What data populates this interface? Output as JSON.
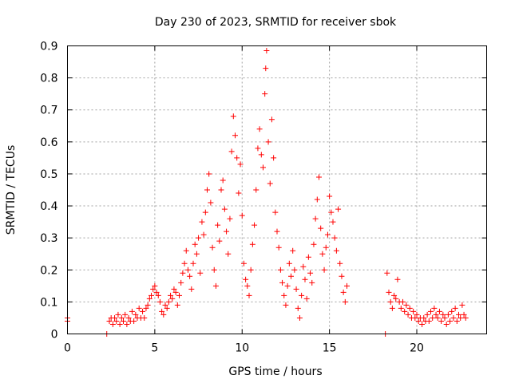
{
  "chart_data": {
    "type": "scatter",
    "title": "Day 230 of 2023, SRMTID for receiver sbok",
    "xlabel": "GPS time / hours",
    "ylabel": "SRMTID / TECUs",
    "xlim": [
      0,
      24
    ],
    "ylim": [
      0,
      0.9
    ],
    "xticks": [
      0,
      5,
      10,
      15,
      20
    ],
    "xtick_labels": [
      "0",
      "5",
      "10",
      "15",
      "20"
    ],
    "yticks": [
      0,
      0.1,
      0.2,
      0.3,
      0.4,
      0.5,
      0.6,
      0.7,
      0.8,
      0.9
    ],
    "ytick_labels": [
      "0",
      "0.1",
      "0.2",
      "0.3",
      "0.4",
      "0.5",
      "0.6",
      "0.7",
      "0.8",
      "0.9"
    ],
    "grid": true,
    "marker": "plus",
    "color": "#ff0000",
    "series": [
      {
        "name": "SRMTID",
        "points": [
          [
            0.0,
            0.05
          ],
          [
            0.0,
            0.04
          ],
          [
            2.25,
            0.0
          ],
          [
            18.2,
            0.0
          ],
          [
            2.4,
            0.04
          ],
          [
            2.5,
            0.05
          ],
          [
            2.6,
            0.03
          ],
          [
            2.7,
            0.05
          ],
          [
            2.8,
            0.04
          ],
          [
            2.9,
            0.06
          ],
          [
            3.0,
            0.03
          ],
          [
            3.1,
            0.05
          ],
          [
            3.2,
            0.04
          ],
          [
            3.3,
            0.06
          ],
          [
            3.4,
            0.03
          ],
          [
            3.5,
            0.05
          ],
          [
            3.6,
            0.04
          ],
          [
            3.7,
            0.07
          ],
          [
            3.8,
            0.04
          ],
          [
            3.9,
            0.06
          ],
          [
            4.0,
            0.05
          ],
          [
            4.1,
            0.08
          ],
          [
            4.2,
            0.05
          ],
          [
            4.3,
            0.07
          ],
          [
            4.4,
            0.05
          ],
          [
            4.5,
            0.08
          ],
          [
            4.6,
            0.09
          ],
          [
            4.7,
            0.11
          ],
          [
            4.8,
            0.12
          ],
          [
            4.9,
            0.14
          ],
          [
            5.0,
            0.15
          ],
          [
            5.1,
            0.13
          ],
          [
            5.2,
            0.12
          ],
          [
            5.3,
            0.1
          ],
          [
            5.4,
            0.07
          ],
          [
            5.5,
            0.06
          ],
          [
            5.6,
            0.09
          ],
          [
            5.7,
            0.08
          ],
          [
            5.8,
            0.1
          ],
          [
            5.9,
            0.12
          ],
          [
            6.0,
            0.11
          ],
          [
            6.1,
            0.14
          ],
          [
            6.2,
            0.13
          ],
          [
            6.3,
            0.09
          ],
          [
            6.4,
            0.12
          ],
          [
            6.5,
            0.16
          ],
          [
            6.6,
            0.19
          ],
          [
            6.7,
            0.22
          ],
          [
            6.8,
            0.26
          ],
          [
            6.9,
            0.2
          ],
          [
            7.0,
            0.18
          ],
          [
            7.1,
            0.14
          ],
          [
            7.2,
            0.22
          ],
          [
            7.3,
            0.28
          ],
          [
            7.4,
            0.25
          ],
          [
            7.5,
            0.3
          ],
          [
            7.6,
            0.19
          ],
          [
            7.7,
            0.35
          ],
          [
            7.8,
            0.31
          ],
          [
            7.9,
            0.38
          ],
          [
            8.0,
            0.45
          ],
          [
            8.1,
            0.5
          ],
          [
            8.2,
            0.41
          ],
          [
            8.3,
            0.27
          ],
          [
            8.4,
            0.2
          ],
          [
            8.5,
            0.15
          ],
          [
            8.6,
            0.34
          ],
          [
            8.7,
            0.29
          ],
          [
            8.8,
            0.45
          ],
          [
            8.9,
            0.48
          ],
          [
            9.0,
            0.39
          ],
          [
            9.1,
            0.32
          ],
          [
            9.2,
            0.25
          ],
          [
            9.3,
            0.36
          ],
          [
            9.4,
            0.57
          ],
          [
            9.5,
            0.68
          ],
          [
            9.6,
            0.62
          ],
          [
            9.7,
            0.55
          ],
          [
            9.8,
            0.44
          ],
          [
            9.9,
            0.53
          ],
          [
            10.0,
            0.37
          ],
          [
            10.1,
            0.22
          ],
          [
            10.2,
            0.17
          ],
          [
            10.3,
            0.15
          ],
          [
            10.4,
            0.12
          ],
          [
            10.5,
            0.2
          ],
          [
            10.6,
            0.28
          ],
          [
            10.7,
            0.34
          ],
          [
            10.8,
            0.45
          ],
          [
            10.9,
            0.58
          ],
          [
            11.0,
            0.64
          ],
          [
            11.1,
            0.56
          ],
          [
            11.2,
            0.52
          ],
          [
            11.3,
            0.75
          ],
          [
            11.35,
            0.83
          ],
          [
            11.4,
            0.885
          ],
          [
            11.5,
            0.6
          ],
          [
            11.6,
            0.47
          ],
          [
            11.7,
            0.67
          ],
          [
            11.8,
            0.55
          ],
          [
            11.9,
            0.38
          ],
          [
            12.0,
            0.32
          ],
          [
            12.1,
            0.27
          ],
          [
            12.2,
            0.2
          ],
          [
            12.3,
            0.16
          ],
          [
            12.4,
            0.12
          ],
          [
            12.5,
            0.09
          ],
          [
            12.6,
            0.15
          ],
          [
            12.7,
            0.22
          ],
          [
            12.8,
            0.18
          ],
          [
            12.9,
            0.26
          ],
          [
            13.0,
            0.2
          ],
          [
            13.1,
            0.14
          ],
          [
            13.2,
            0.08
          ],
          [
            13.3,
            0.05
          ],
          [
            13.4,
            0.12
          ],
          [
            13.5,
            0.21
          ],
          [
            13.6,
            0.17
          ],
          [
            13.7,
            0.11
          ],
          [
            13.8,
            0.24
          ],
          [
            13.9,
            0.19
          ],
          [
            14.0,
            0.16
          ],
          [
            14.1,
            0.28
          ],
          [
            14.2,
            0.36
          ],
          [
            14.3,
            0.42
          ],
          [
            14.4,
            0.49
          ],
          [
            14.5,
            0.33
          ],
          [
            14.6,
            0.25
          ],
          [
            14.7,
            0.2
          ],
          [
            14.8,
            0.27
          ],
          [
            14.9,
            0.31
          ],
          [
            15.0,
            0.43
          ],
          [
            15.1,
            0.38
          ],
          [
            15.2,
            0.35
          ],
          [
            15.3,
            0.3
          ],
          [
            15.4,
            0.26
          ],
          [
            15.5,
            0.39
          ],
          [
            15.6,
            0.22
          ],
          [
            15.7,
            0.18
          ],
          [
            15.8,
            0.13
          ],
          [
            15.9,
            0.1
          ],
          [
            16.0,
            0.15
          ],
          [
            18.3,
            0.19
          ],
          [
            18.4,
            0.13
          ],
          [
            18.5,
            0.1
          ],
          [
            18.6,
            0.08
          ],
          [
            18.7,
            0.12
          ],
          [
            18.8,
            0.11
          ],
          [
            18.9,
            0.17
          ],
          [
            19.0,
            0.1
          ],
          [
            19.1,
            0.08
          ],
          [
            19.2,
            0.1
          ],
          [
            19.3,
            0.07
          ],
          [
            19.4,
            0.09
          ],
          [
            19.5,
            0.06
          ],
          [
            19.6,
            0.08
          ],
          [
            19.7,
            0.05
          ],
          [
            19.8,
            0.07
          ],
          [
            19.9,
            0.05
          ],
          [
            20.0,
            0.06
          ],
          [
            20.1,
            0.04
          ],
          [
            20.2,
            0.05
          ],
          [
            20.3,
            0.03
          ],
          [
            20.4,
            0.05
          ],
          [
            20.5,
            0.04
          ],
          [
            20.6,
            0.06
          ],
          [
            20.7,
            0.04
          ],
          [
            20.8,
            0.07
          ],
          [
            20.9,
            0.05
          ],
          [
            21.0,
            0.08
          ],
          [
            21.1,
            0.06
          ],
          [
            21.2,
            0.05
          ],
          [
            21.3,
            0.07
          ],
          [
            21.4,
            0.04
          ],
          [
            21.5,
            0.06
          ],
          [
            21.6,
            0.05
          ],
          [
            21.7,
            0.03
          ],
          [
            21.8,
            0.06
          ],
          [
            21.9,
            0.04
          ],
          [
            22.0,
            0.07
          ],
          [
            22.1,
            0.05
          ],
          [
            22.2,
            0.08
          ],
          [
            22.3,
            0.04
          ],
          [
            22.4,
            0.06
          ],
          [
            22.5,
            0.05
          ],
          [
            22.6,
            0.09
          ],
          [
            22.7,
            0.06
          ],
          [
            22.8,
            0.05
          ]
        ]
      }
    ]
  }
}
